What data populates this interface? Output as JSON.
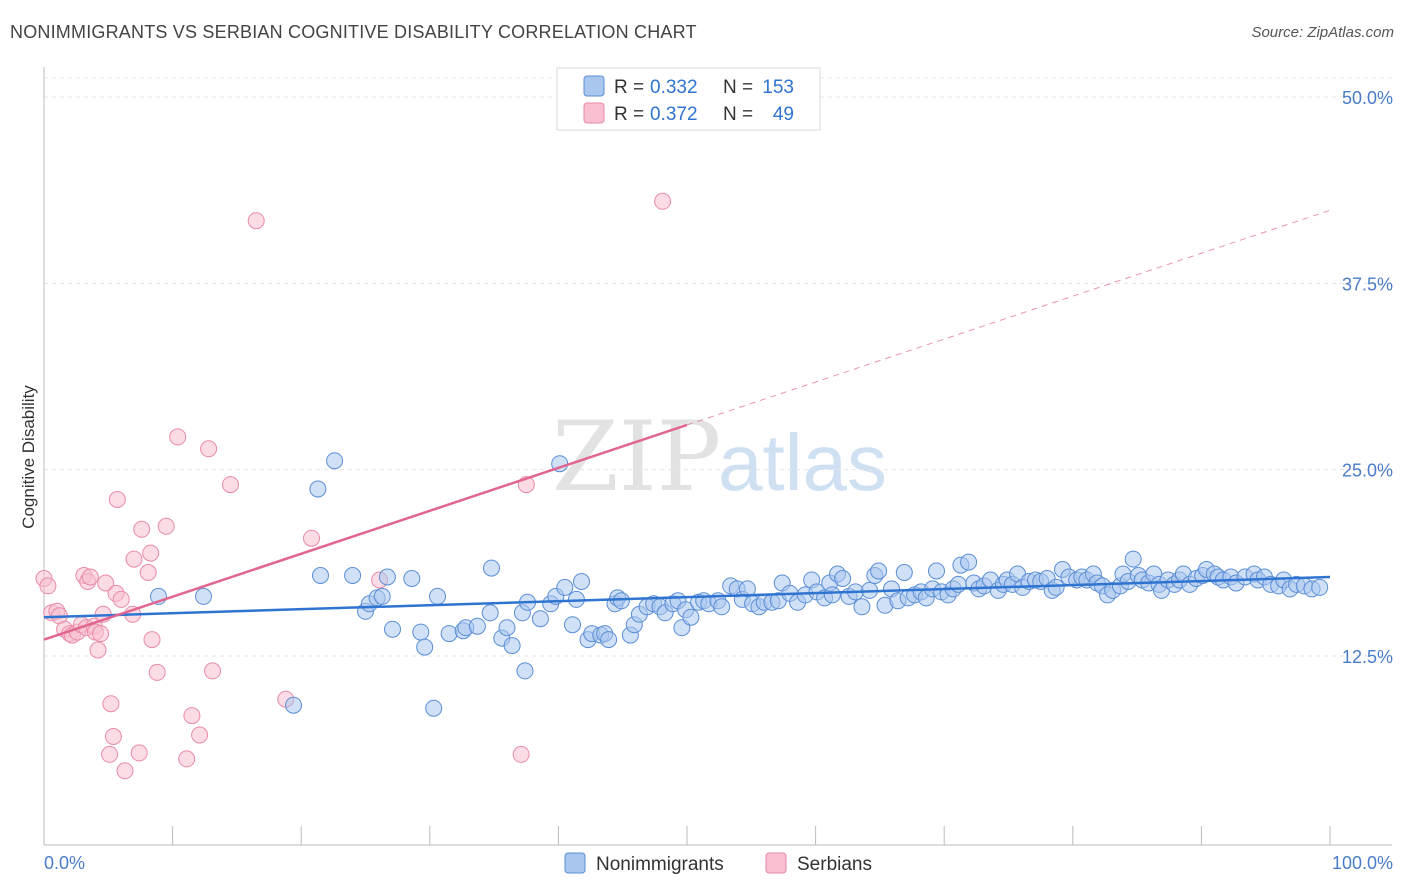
{
  "header": {
    "title": "NONIMMIGRANTS VS SERBIAN COGNITIVE DISABILITY CORRELATION CHART",
    "source": "Source: ZipAtlas.com"
  },
  "watermark": {
    "zip": "ZIP",
    "atlas": "atlas"
  },
  "colors": {
    "blue_fill": "#a9c6ee",
    "blue_stroke": "#5b8ed6",
    "blue_line": "#2f74d0",
    "pink_fill": "#f7bfd0",
    "pink_stroke": "#e98aa8",
    "pink_line": "#e0668f",
    "axis_text": "#4a7cc7"
  },
  "chart_data": {
    "type": "scatter",
    "title": "NONIMMIGRANTS VS SERBIAN COGNITIVE DISABILITY CORRELATION CHART",
    "xlabel": "",
    "ylabel": "Cognitive Disability",
    "xlim": [
      0,
      100
    ],
    "ylim": [
      0,
      52
    ],
    "x_tick_labels": [
      "0.0%",
      "100.0%"
    ],
    "y_ticks": [
      12.5,
      25.0,
      37.5,
      50.0
    ],
    "y_tick_labels": [
      "12.5%",
      "25.0%",
      "37.5%",
      "50.0%"
    ],
    "grid": true,
    "legend_position": "top-center",
    "legend": [
      {
        "r_label": "R =",
        "r_value": "0.332",
        "n_label": "N =",
        "n_value": "153"
      },
      {
        "r_label": "R =",
        "r_value": "0.372",
        "n_label": "N =",
        "n_value": "49"
      }
    ],
    "series": [
      {
        "name": "Nonimmigrants",
        "color": "#5b8ed6",
        "trend": {
          "x0": 0,
          "y0": 15.1,
          "x1": 100,
          "y1": 17.8
        },
        "points": [
          [
            8.9,
            16.5
          ],
          [
            12.4,
            16.5
          ],
          [
            19.4,
            9.2
          ],
          [
            21.3,
            23.7
          ],
          [
            21.5,
            17.9
          ],
          [
            22.6,
            25.6
          ],
          [
            24.0,
            17.9
          ],
          [
            25.0,
            15.5
          ],
          [
            25.3,
            16.0
          ],
          [
            25.9,
            16.4
          ],
          [
            26.3,
            16.5
          ],
          [
            26.7,
            17.8
          ],
          [
            27.1,
            14.3
          ],
          [
            28.6,
            17.7
          ],
          [
            29.3,
            14.1
          ],
          [
            29.6,
            13.1
          ],
          [
            30.3,
            9.0
          ],
          [
            30.6,
            16.5
          ],
          [
            31.5,
            14.0
          ],
          [
            32.6,
            14.2
          ],
          [
            32.8,
            14.4
          ],
          [
            33.7,
            14.5
          ],
          [
            34.7,
            15.4
          ],
          [
            34.8,
            18.4
          ],
          [
            35.6,
            13.7
          ],
          [
            36.0,
            14.4
          ],
          [
            36.4,
            13.2
          ],
          [
            37.2,
            15.4
          ],
          [
            37.4,
            11.5
          ],
          [
            37.6,
            16.1
          ],
          [
            38.6,
            15.0
          ],
          [
            39.4,
            16.0
          ],
          [
            39.8,
            16.5
          ],
          [
            40.1,
            25.4
          ],
          [
            40.5,
            17.1
          ],
          [
            41.1,
            14.6
          ],
          [
            41.4,
            16.3
          ],
          [
            41.8,
            17.5
          ],
          [
            42.3,
            13.6
          ],
          [
            42.6,
            14.0
          ],
          [
            43.3,
            13.9
          ],
          [
            43.6,
            14.0
          ],
          [
            43.9,
            13.6
          ],
          [
            44.4,
            16.0
          ],
          [
            44.6,
            16.4
          ],
          [
            44.9,
            16.2
          ],
          [
            45.6,
            13.9
          ],
          [
            45.9,
            14.6
          ],
          [
            46.3,
            15.3
          ],
          [
            46.9,
            15.8
          ],
          [
            47.4,
            16.0
          ],
          [
            47.9,
            15.8
          ],
          [
            48.3,
            15.4
          ],
          [
            48.9,
            16.0
          ],
          [
            49.3,
            16.2
          ],
          [
            49.6,
            14.4
          ],
          [
            49.9,
            15.6
          ],
          [
            50.3,
            15.1
          ],
          [
            50.9,
            16.1
          ],
          [
            51.3,
            16.2
          ],
          [
            51.7,
            16.0
          ],
          [
            52.4,
            16.2
          ],
          [
            52.7,
            15.8
          ],
          [
            53.4,
            17.2
          ],
          [
            53.9,
            17.0
          ],
          [
            54.3,
            16.3
          ],
          [
            54.7,
            17.0
          ],
          [
            55.1,
            16.0
          ],
          [
            55.6,
            15.8
          ],
          [
            56.0,
            16.1
          ],
          [
            56.6,
            16.1
          ],
          [
            57.1,
            16.2
          ],
          [
            57.4,
            17.4
          ],
          [
            58.0,
            16.7
          ],
          [
            58.6,
            16.1
          ],
          [
            59.2,
            16.6
          ],
          [
            59.7,
            17.6
          ],
          [
            60.1,
            16.8
          ],
          [
            60.7,
            16.4
          ],
          [
            61.1,
            17.4
          ],
          [
            61.3,
            16.6
          ],
          [
            61.7,
            18.0
          ],
          [
            62.1,
            17.7
          ],
          [
            62.6,
            16.5
          ],
          [
            63.1,
            16.8
          ],
          [
            63.6,
            15.8
          ],
          [
            64.2,
            16.9
          ],
          [
            64.6,
            17.9
          ],
          [
            64.9,
            18.2
          ],
          [
            65.4,
            15.9
          ],
          [
            65.9,
            17.0
          ],
          [
            66.4,
            16.2
          ],
          [
            66.9,
            18.1
          ],
          [
            67.2,
            16.4
          ],
          [
            67.7,
            16.6
          ],
          [
            68.2,
            16.8
          ],
          [
            68.6,
            16.4
          ],
          [
            69.1,
            17.0
          ],
          [
            69.4,
            18.2
          ],
          [
            69.8,
            16.8
          ],
          [
            70.3,
            16.6
          ],
          [
            70.7,
            17.0
          ],
          [
            71.1,
            17.3
          ],
          [
            71.3,
            18.6
          ],
          [
            71.9,
            18.8
          ],
          [
            72.3,
            17.4
          ],
          [
            72.7,
            17.0
          ],
          [
            73.1,
            17.2
          ],
          [
            73.6,
            17.6
          ],
          [
            74.2,
            16.9
          ],
          [
            74.6,
            17.3
          ],
          [
            74.9,
            17.6
          ],
          [
            75.3,
            17.3
          ],
          [
            75.7,
            18.0
          ],
          [
            76.1,
            17.1
          ],
          [
            76.6,
            17.5
          ],
          [
            77.1,
            17.6
          ],
          [
            77.5,
            17.5
          ],
          [
            78.0,
            17.7
          ],
          [
            78.4,
            16.9
          ],
          [
            78.7,
            17.1
          ],
          [
            79.2,
            18.3
          ],
          [
            79.7,
            17.8
          ],
          [
            80.3,
            17.6
          ],
          [
            80.7,
            17.8
          ],
          [
            81.1,
            17.6
          ],
          [
            81.6,
            18.0
          ],
          [
            81.9,
            17.4
          ],
          [
            82.3,
            17.2
          ],
          [
            82.7,
            16.6
          ],
          [
            83.1,
            16.9
          ],
          [
            83.7,
            17.2
          ],
          [
            83.9,
            18.0
          ],
          [
            84.3,
            17.5
          ],
          [
            84.7,
            19.0
          ],
          [
            85.1,
            17.9
          ],
          [
            85.4,
            17.6
          ],
          [
            85.9,
            17.4
          ],
          [
            86.3,
            18.0
          ],
          [
            86.7,
            17.3
          ],
          [
            86.9,
            16.9
          ],
          [
            87.4,
            17.6
          ],
          [
            87.9,
            17.3
          ],
          [
            88.3,
            17.6
          ],
          [
            88.6,
            18.0
          ],
          [
            89.1,
            17.3
          ],
          [
            89.6,
            17.7
          ],
          [
            90.1,
            17.9
          ],
          [
            90.4,
            18.3
          ],
          [
            91.0,
            18.0
          ],
          [
            91.3,
            17.8
          ],
          [
            91.7,
            17.6
          ],
          [
            92.3,
            17.8
          ],
          [
            92.7,
            17.4
          ],
          [
            93.4,
            17.8
          ],
          [
            94.1,
            18.0
          ],
          [
            94.4,
            17.6
          ],
          [
            94.9,
            17.8
          ],
          [
            95.4,
            17.3
          ],
          [
            96.0,
            17.2
          ],
          [
            96.4,
            17.6
          ],
          [
            96.9,
            17.0
          ],
          [
            97.4,
            17.3
          ],
          [
            98.0,
            17.2
          ],
          [
            98.6,
            17.0
          ],
          [
            99.2,
            17.1
          ]
        ]
      },
      {
        "name": "Serbians",
        "color": "#e98aa8",
        "trend": {
          "x0": 0,
          "y0": 13.6,
          "x1": 50,
          "y1": 28.0,
          "dash_to_x": 100,
          "dash_to_y": 42.4
        },
        "points": [
          [
            0.0,
            17.7
          ],
          [
            0.3,
            17.2
          ],
          [
            0.6,
            15.4
          ],
          [
            1.0,
            15.5
          ],
          [
            1.2,
            15.2
          ],
          [
            1.6,
            14.3
          ],
          [
            2.0,
            14.0
          ],
          [
            2.2,
            13.9
          ],
          [
            2.6,
            14.1
          ],
          [
            2.9,
            14.6
          ],
          [
            3.1,
            17.9
          ],
          [
            3.3,
            14.4
          ],
          [
            3.4,
            17.5
          ],
          [
            3.6,
            17.8
          ],
          [
            3.9,
            14.5
          ],
          [
            4.0,
            14.1
          ],
          [
            4.2,
            12.9
          ],
          [
            4.4,
            14.0
          ],
          [
            4.6,
            15.3
          ],
          [
            4.8,
            17.4
          ],
          [
            5.2,
            9.3
          ],
          [
            5.1,
            5.9
          ],
          [
            5.4,
            7.1
          ],
          [
            5.6,
            16.7
          ],
          [
            5.7,
            23.0
          ],
          [
            6.0,
            16.3
          ],
          [
            6.3,
            4.8
          ],
          [
            6.9,
            15.3
          ],
          [
            7.0,
            19.0
          ],
          [
            7.4,
            6.0
          ],
          [
            7.6,
            21.0
          ],
          [
            8.1,
            18.1
          ],
          [
            8.3,
            19.4
          ],
          [
            8.4,
            13.6
          ],
          [
            8.8,
            11.4
          ],
          [
            9.5,
            21.2
          ],
          [
            10.4,
            27.2
          ],
          [
            11.1,
            5.6
          ],
          [
            11.5,
            8.5
          ],
          [
            12.1,
            7.2
          ],
          [
            12.8,
            26.4
          ],
          [
            13.1,
            11.5
          ],
          [
            14.5,
            24.0
          ],
          [
            16.5,
            41.7
          ],
          [
            18.8,
            9.6
          ],
          [
            20.8,
            20.4
          ],
          [
            26.1,
            17.6
          ],
          [
            37.1,
            5.9
          ],
          [
            37.5,
            24.0
          ],
          [
            48.1,
            43.0
          ]
        ]
      }
    ]
  },
  "bottom_legend": {
    "items": [
      {
        "label": "Nonimmigrants"
      },
      {
        "label": "Serbians"
      }
    ]
  }
}
